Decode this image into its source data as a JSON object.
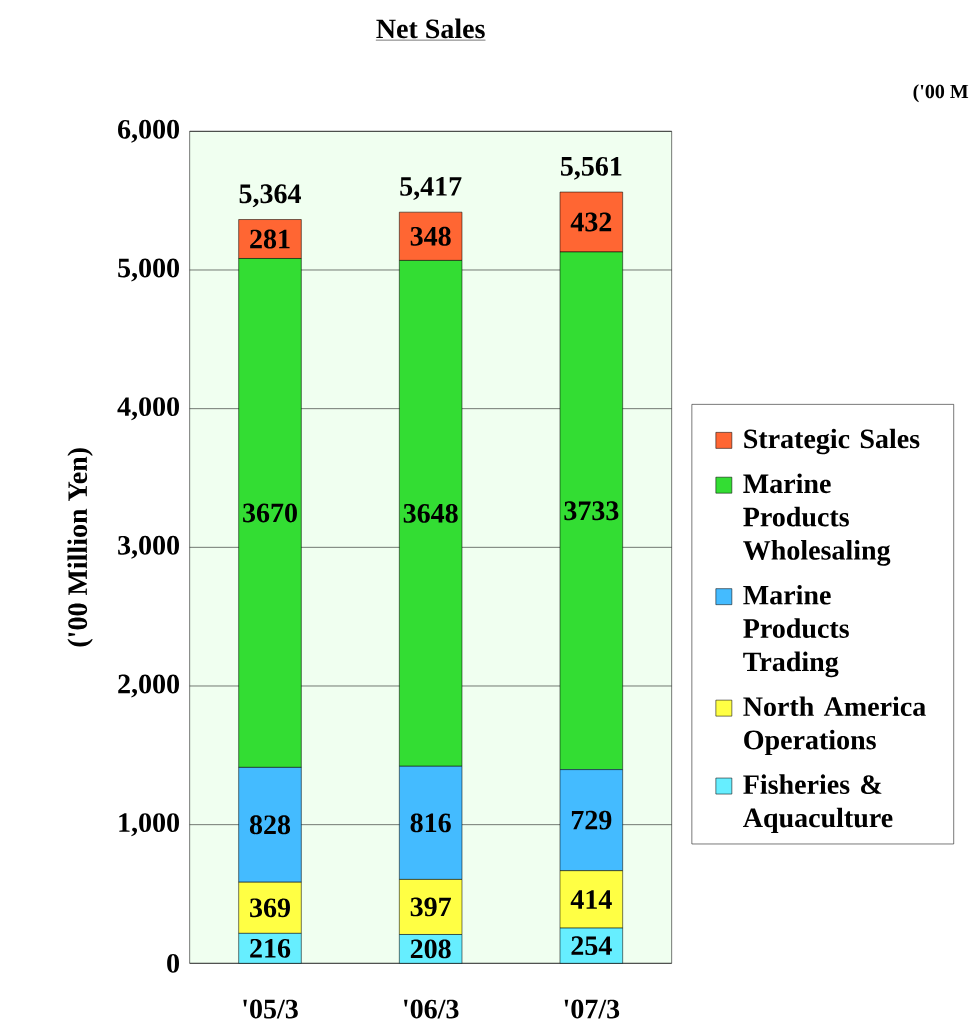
{
  "chart_data": {
    "type": "bar",
    "title": "Net Sales",
    "ylabel": "('00 Million Yen)",
    "annotations": [
      "('00 M"
    ],
    "categories": [
      "'05/3",
      "'06/3",
      "'07/3"
    ],
    "stacked": true,
    "data_labels": true,
    "grid": "y",
    "legend": "right",
    "totals": [
      "5,364",
      "5,417",
      "5,561"
    ],
    "ylim": [
      0,
      6000
    ],
    "yticks": [
      0,
      {
        "value": 1000,
        "label": "1,000"
      },
      {
        "value": 2000,
        "label": "2,000"
      },
      {
        "value": 3000,
        "label": "3,000"
      },
      {
        "value": 4000,
        "label": "4,000"
      },
      {
        "value": 5000,
        "label": "5,000"
      },
      {
        "value": 6000,
        "label": "6,000"
      }
    ],
    "series": [
      {
        "name": "Fisheries & Aquaculture",
        "color": "#66eeff",
        "values": [
          216,
          208,
          254
        ]
      },
      {
        "name": "North America Operations",
        "color": "#ffff44",
        "values": [
          369,
          397,
          414
        ]
      },
      {
        "name": "Marine Products Trading",
        "color": "#44bbff",
        "values": [
          828,
          816,
          729
        ]
      },
      {
        "name": "Marine Products Wholesaling",
        "color": "#33dd33",
        "values": [
          3670,
          3648,
          3733
        ]
      },
      {
        "name": "Strategic Sales",
        "color": "#ff6633",
        "values": [
          281,
          348,
          432
        ]
      }
    ]
  }
}
